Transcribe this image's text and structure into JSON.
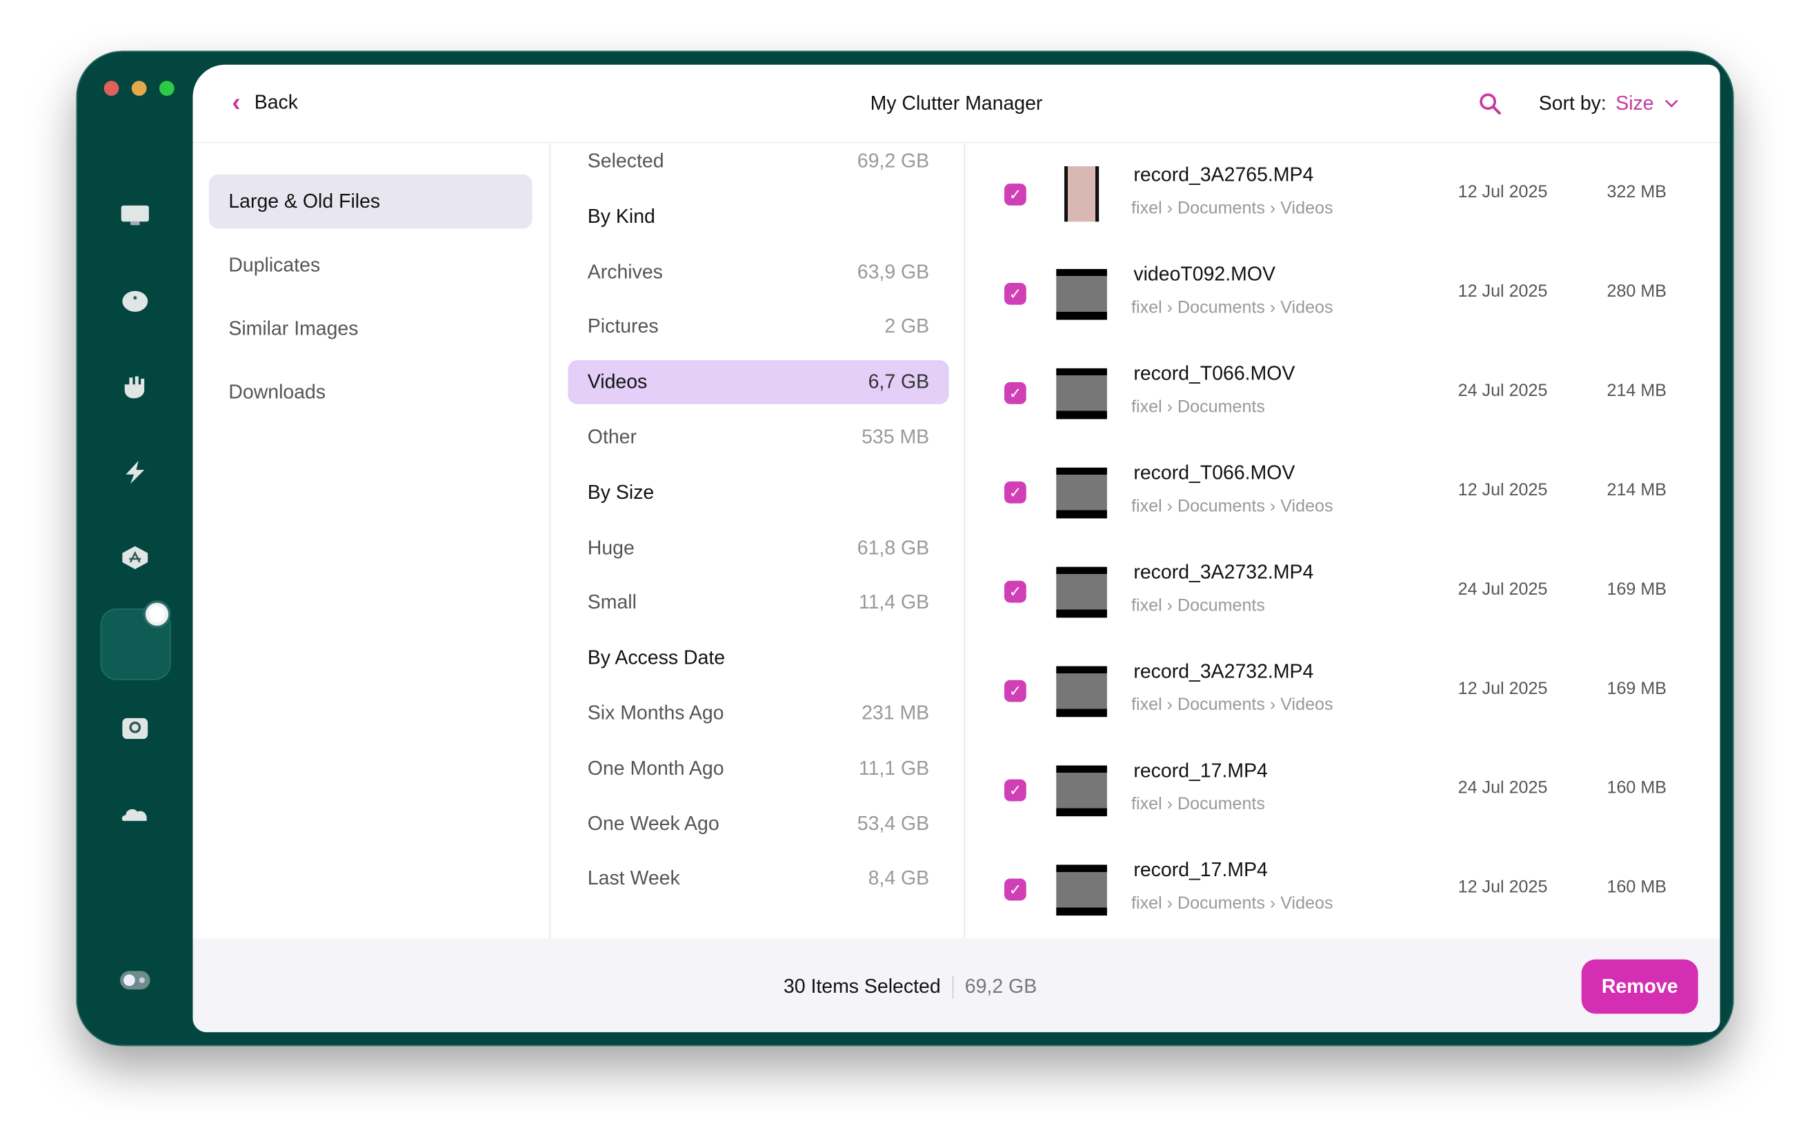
{
  "header": {
    "back_label": "Back",
    "title": "My Clutter Manager",
    "sort_label": "Sort by:",
    "sort_value": "Size"
  },
  "colors": {
    "accent": "#d42fb3",
    "sidebar": "#03463f",
    "selected_filter": "#e3cff7",
    "selected_category": "#e8e6f0"
  },
  "sidebar": {
    "icons": [
      "display-icon",
      "disk-icon",
      "hand-icon",
      "lightning-icon",
      "app-store-icon",
      "folder-icon",
      "search-disk-icon",
      "cloud-icon",
      "toggle-icon"
    ],
    "active": "folder-icon"
  },
  "categories": [
    {
      "label": "Large & Old Files",
      "selected": true
    },
    {
      "label": "Duplicates"
    },
    {
      "label": "Similar Images"
    },
    {
      "label": "Downloads"
    }
  ],
  "filters": [
    {
      "label": "Selected",
      "value": "69,2 GB"
    },
    {
      "label": "By Kind",
      "heading": true
    },
    {
      "label": "Archives",
      "value": "63,9 GB"
    },
    {
      "label": "Pictures",
      "value": "2 GB"
    },
    {
      "label": "Videos",
      "value": "6,7 GB",
      "selected": true
    },
    {
      "label": "Other",
      "value": "535 MB"
    },
    {
      "label": "By Size",
      "heading": true
    },
    {
      "label": "Huge",
      "value": "61,8 GB"
    },
    {
      "label": "Small",
      "value": "11,4 GB"
    },
    {
      "label": "By Access Date",
      "heading": true
    },
    {
      "label": "Six Months Ago",
      "value": "231 MB"
    },
    {
      "label": "One Month Ago",
      "value": "11,1 GB"
    },
    {
      "label": "One Week Ago",
      "value": "53,4 GB"
    },
    {
      "label": "Last Week",
      "value": "8,4 GB"
    }
  ],
  "files": [
    {
      "name": "record_3A2765.MP4",
      "path": "fixel › Documents › Videos",
      "date": "12 Jul 2025",
      "size": "322 MB",
      "checked": true,
      "portrait": true
    },
    {
      "name": "videoT092.MOV",
      "path": "fixel › Documents › Videos",
      "date": "12 Jul 2025",
      "size": "280 MB",
      "checked": true
    },
    {
      "name": "record_T066.MOV",
      "path": "fixel › Documents",
      "date": "24 Jul 2025",
      "size": "214 MB",
      "checked": true
    },
    {
      "name": "record_T066.MOV",
      "path": "fixel › Documents › Videos",
      "date": "12 Jul 2025",
      "size": "214 MB",
      "checked": true
    },
    {
      "name": "record_3A2732.MP4",
      "path": "fixel › Documents",
      "date": "24 Jul 2025",
      "size": "169 MB",
      "checked": true
    },
    {
      "name": "record_3A2732.MP4",
      "path": "fixel › Documents › Videos",
      "date": "12 Jul 2025",
      "size": "169 MB",
      "checked": true
    },
    {
      "name": "record_17.MP4",
      "path": "fixel › Documents",
      "date": "24 Jul 2025",
      "size": "160 MB",
      "checked": true
    },
    {
      "name": "record_17.MP4",
      "path": "fixel › Documents › Videos",
      "date": "12 Jul 2025",
      "size": "160 MB",
      "checked": true
    }
  ],
  "footer": {
    "selected_count": "30 Items Selected",
    "selected_size": "69,2 GB",
    "remove_label": "Remove"
  }
}
